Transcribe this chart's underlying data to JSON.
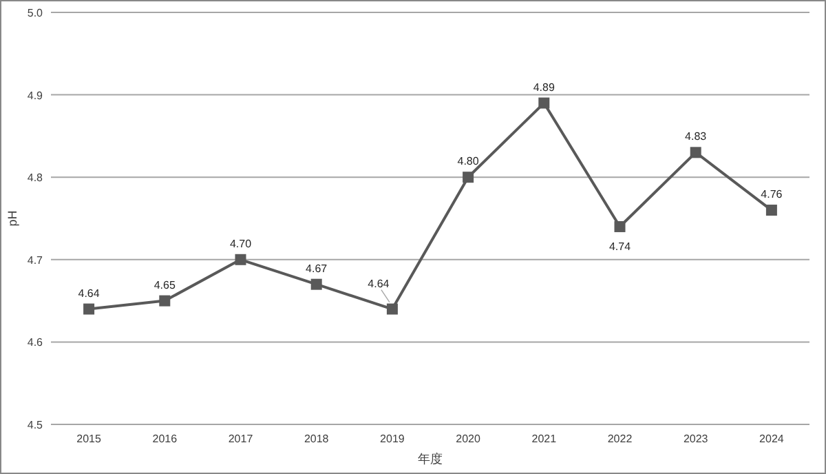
{
  "chart_data": {
    "type": "line",
    "xlabel": "年度",
    "ylabel": "pH",
    "categories": [
      "2015",
      "2016",
      "2017",
      "2018",
      "2019",
      "2020",
      "2021",
      "2022",
      "2023",
      "2024"
    ],
    "values": [
      4.64,
      4.65,
      4.7,
      4.67,
      4.64,
      4.8,
      4.89,
      4.74,
      4.83,
      4.76
    ],
    "value_labels": [
      "4.64",
      "4.65",
      "4.70",
      "4.67",
      "4.64",
      "4.80",
      "4.89",
      "4.74",
      "4.83",
      "4.76"
    ],
    "color": "#595959",
    "marker": "square",
    "line_style": "solid",
    "grid": "y",
    "ylim": [
      4.5,
      5.0
    ],
    "yticks": [
      {
        "value": 4.5,
        "label": "4.5"
      },
      {
        "value": 4.6,
        "label": "4.6"
      },
      {
        "value": 4.7,
        "label": "4.7"
      },
      {
        "value": 4.8,
        "label": "4.8"
      },
      {
        "value": 4.9,
        "label": "4.9"
      },
      {
        "value": 5.0,
        "label": "5.0"
      }
    ]
  }
}
